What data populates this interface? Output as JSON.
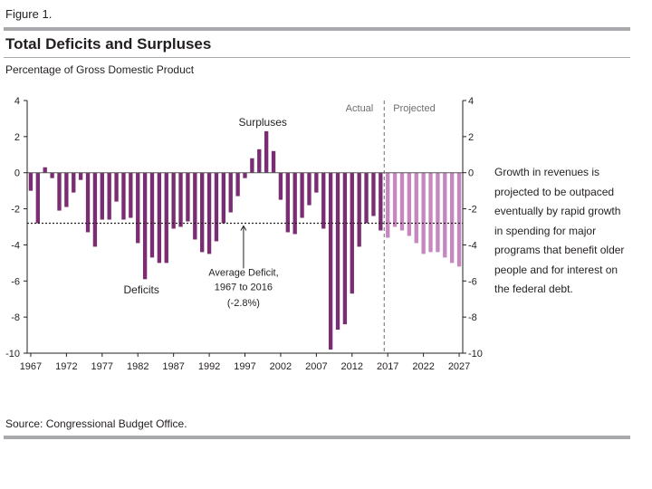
{
  "figure_label": "Figure 1.",
  "title": "Total Deficits and Surpluses",
  "subtitle": "Percentage of Gross Domestic Product",
  "note": "Growth in revenues is projected to be outpaced eventually by rapid growth in spending for major programs that benefit older people and for interest on the federal debt.",
  "source": "Source: Congressional Budget Office.",
  "colors": {
    "actual": "#7b2d73",
    "projected": "#c686bf",
    "rule": "#a7a9ac",
    "text": "#231f20"
  },
  "chart_data": {
    "type": "bar",
    "title": "Total Deficits and Surpluses",
    "ylabel": "Percentage of Gross Domestic Product",
    "ylim": [
      -10,
      4
    ],
    "yticks": [
      4,
      2,
      0,
      -2,
      -4,
      -6,
      -8,
      -10
    ],
    "xticks": [
      1967,
      1972,
      1977,
      1982,
      1987,
      1992,
      1997,
      2002,
      2007,
      2012,
      2017,
      2022,
      2027
    ],
    "grid": false,
    "annotations": {
      "actual": "Actual",
      "projected": "Projected",
      "surpluses": "Surpluses",
      "deficits": "Deficits",
      "average_line1": "Average Deficit,",
      "average_line2": "1967 to 2016",
      "average_line3": "(-2.8%)"
    },
    "average_deficit": -2.8,
    "series": [
      {
        "name": "Actual",
        "x": [
          1967,
          1968,
          1969,
          1970,
          1971,
          1972,
          1973,
          1974,
          1975,
          1976,
          1977,
          1978,
          1979,
          1980,
          1981,
          1982,
          1983,
          1984,
          1985,
          1986,
          1987,
          1988,
          1989,
          1990,
          1991,
          1992,
          1993,
          1994,
          1995,
          1996,
          1997,
          1998,
          1999,
          2000,
          2001,
          2002,
          2003,
          2004,
          2005,
          2006,
          2007,
          2008,
          2009,
          2010,
          2011,
          2012,
          2013,
          2014,
          2015,
          2016
        ],
        "values": [
          -1.0,
          -2.8,
          0.3,
          -0.3,
          -2.1,
          -1.9,
          -1.1,
          -0.4,
          -3.3,
          -4.1,
          -2.6,
          -2.6,
          -1.6,
          -2.6,
          -2.5,
          -3.9,
          -5.9,
          -4.7,
          -5.0,
          -5.0,
          -3.1,
          -3.0,
          -2.7,
          -3.7,
          -4.4,
          -4.5,
          -3.8,
          -2.8,
          -2.2,
          -1.3,
          -0.3,
          0.8,
          1.3,
          2.3,
          1.2,
          -1.5,
          -3.3,
          -3.4,
          -2.5,
          -1.8,
          -1.1,
          -3.1,
          -9.8,
          -8.7,
          -8.4,
          -6.7,
          -4.1,
          -2.8,
          -2.4,
          -3.2
        ]
      },
      {
        "name": "Projected",
        "x": [
          2017,
          2018,
          2019,
          2020,
          2021,
          2022,
          2023,
          2024,
          2025,
          2026,
          2027
        ],
        "values": [
          -3.6,
          -3.0,
          -3.2,
          -3.5,
          -3.9,
          -4.5,
          -4.4,
          -4.4,
          -4.7,
          -5.0,
          -5.2
        ]
      }
    ]
  }
}
